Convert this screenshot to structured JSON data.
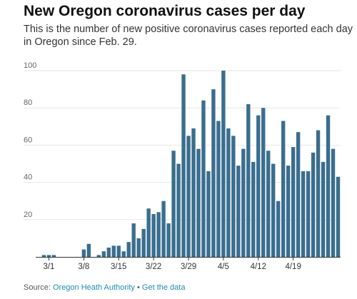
{
  "chart_data": {
    "type": "bar",
    "title": "New Oregon coronavirus cases per day",
    "subtitle": "This is the number of new positive coronavirus cases reported each day in Oregon since Feb. 29.",
    "xlabel": "",
    "ylabel": "",
    "ylim": [
      0,
      100
    ],
    "yticks": [
      20,
      40,
      60,
      80,
      100
    ],
    "grid": true,
    "bar_color": "#3a6e8f",
    "x_tick_labels": [
      {
        "date": "3/1",
        "index": 1
      },
      {
        "date": "3/8",
        "index": 8
      },
      {
        "date": "3/15",
        "index": 15
      },
      {
        "date": "3/22",
        "index": 22
      },
      {
        "date": "3/29",
        "index": 29
      },
      {
        "date": "4/5",
        "index": 36
      },
      {
        "date": "4/12",
        "index": 43
      },
      {
        "date": "4/19",
        "index": 50
      }
    ],
    "start_date": "2/29",
    "values": [
      1,
      1,
      1,
      0,
      0,
      0,
      0,
      0,
      4,
      7,
      0,
      1,
      3,
      5,
      6,
      6,
      3,
      8,
      18,
      10,
      15,
      26,
      23,
      24,
      30,
      18,
      57,
      50,
      98,
      65,
      69,
      58,
      84,
      46,
      90,
      73,
      100,
      69,
      65,
      49,
      58,
      82,
      51,
      76,
      80,
      57,
      50,
      30,
      73,
      49,
      59,
      67,
      46,
      46,
      56,
      68,
      51,
      76,
      58,
      43
    ]
  },
  "source": {
    "label": "Source: ",
    "authority": "Oregon Heath Authority",
    "separator": " • ",
    "link": "Get the data"
  }
}
